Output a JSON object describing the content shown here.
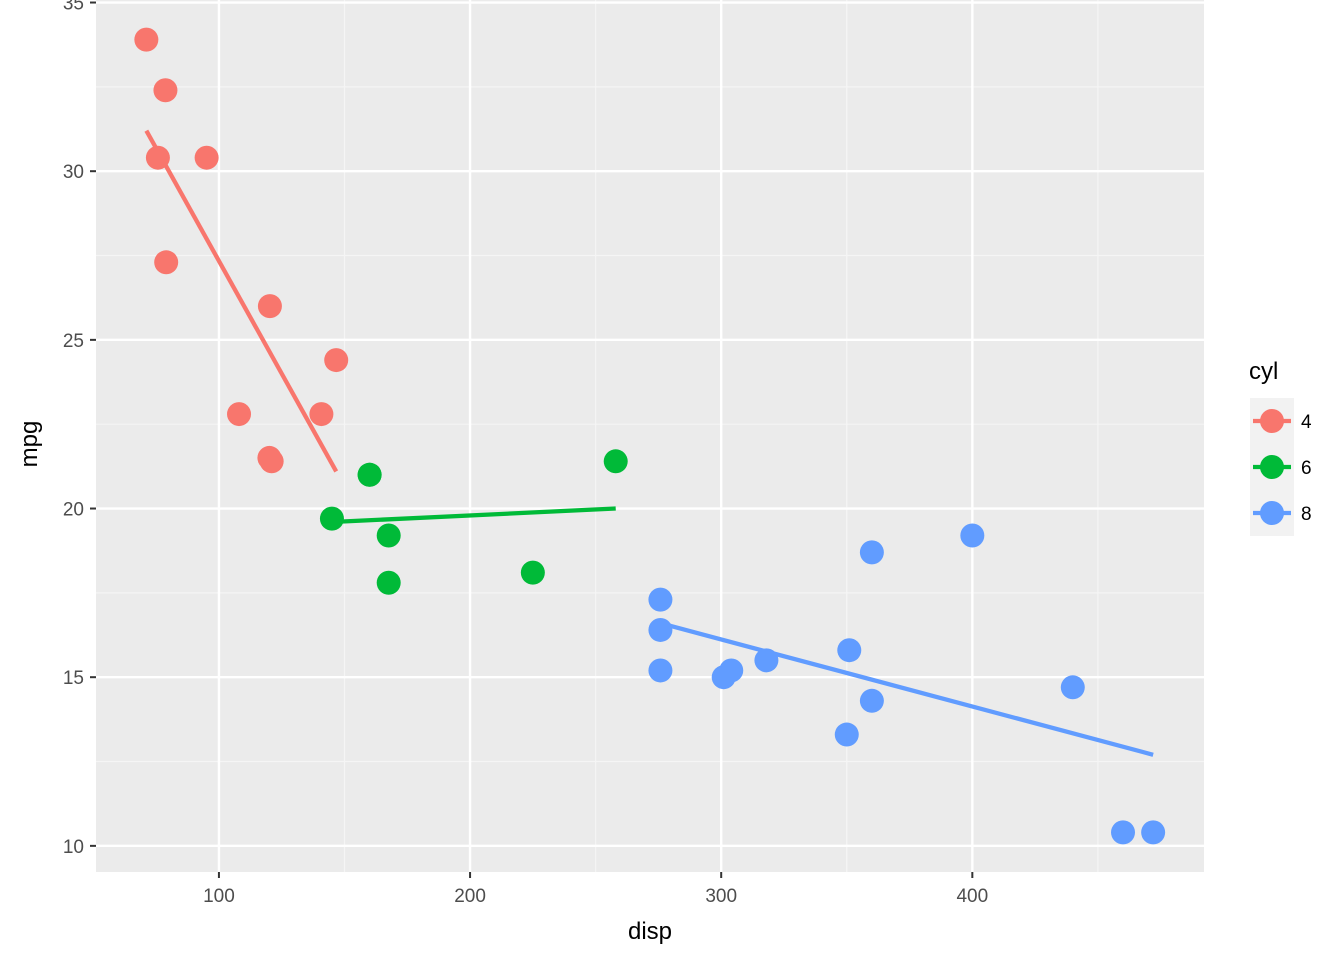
{
  "chart_data": {
    "type": "scatter",
    "xlabel": "disp",
    "ylabel": "mpg",
    "xlim": [
      51.05,
      492.25
    ],
    "ylim": [
      9.225,
      35.075
    ],
    "x_ticks": [
      100,
      200,
      300,
      400
    ],
    "y_ticks": [
      10,
      15,
      20,
      25,
      30,
      35
    ],
    "x_tick_labels": [
      "100",
      "200",
      "300",
      "400"
    ],
    "y_tick_labels": [
      "10",
      "15",
      "20",
      "25",
      "30",
      "35"
    ],
    "grid": true,
    "legend": {
      "title": "cyl",
      "position": "right"
    },
    "series": [
      {
        "name": "4",
        "color": "#F8766D",
        "points": [
          [
            71.1,
            33.9
          ],
          [
            75.7,
            30.4
          ],
          [
            78.7,
            32.4
          ],
          [
            79.0,
            27.3
          ],
          [
            95.1,
            30.4
          ],
          [
            108.0,
            22.8
          ],
          [
            120.1,
            21.5
          ],
          [
            120.3,
            26.0
          ],
          [
            121.0,
            21.4
          ],
          [
            140.8,
            22.8
          ],
          [
            146.7,
            24.4
          ]
        ],
        "fit": [
          [
            71.1,
            31.2
          ],
          [
            146.7,
            21.1
          ]
        ]
      },
      {
        "name": "6",
        "color": "#00BA38",
        "points": [
          [
            145.0,
            19.7
          ],
          [
            160.0,
            21.0
          ],
          [
            160.0,
            21.0
          ],
          [
            167.6,
            19.2
          ],
          [
            167.6,
            17.8
          ],
          [
            225.0,
            18.1
          ],
          [
            258.0,
            21.4
          ]
        ],
        "fit": [
          [
            145.0,
            19.6
          ],
          [
            258.0,
            20.0
          ]
        ]
      },
      {
        "name": "8",
        "color": "#619CFF",
        "points": [
          [
            275.8,
            16.4
          ],
          [
            275.8,
            17.3
          ],
          [
            275.8,
            15.2
          ],
          [
            301.0,
            15.0
          ],
          [
            304.0,
            15.2
          ],
          [
            318.0,
            15.5
          ],
          [
            350.0,
            13.3
          ],
          [
            351.0,
            15.8
          ],
          [
            360.0,
            18.7
          ],
          [
            360.0,
            14.3
          ],
          [
            400.0,
            19.2
          ],
          [
            440.0,
            14.7
          ],
          [
            460.0,
            10.4
          ],
          [
            472.0,
            10.4
          ]
        ],
        "fit": [
          [
            275.8,
            16.6
          ],
          [
            472.0,
            12.7
          ]
        ]
      }
    ]
  }
}
